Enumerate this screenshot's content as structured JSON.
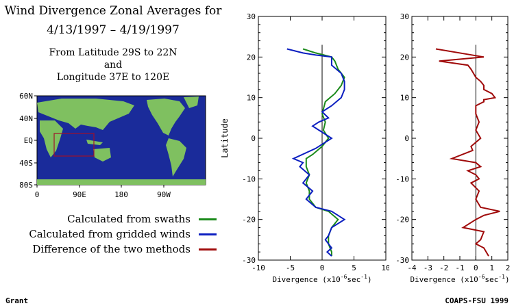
{
  "header": {
    "title_line1": "Wind Divergence Zonal Averages for",
    "title_line2": "4/13/1997 – 4/19/1997",
    "region_line1": "From Latitude 29S to 22N",
    "region_line2": "and",
    "region_line3": "Longitude 37E to 120E"
  },
  "map": {
    "lat_labels": [
      "60N",
      "40N",
      "EQ",
      "40S",
      "80S"
    ],
    "lon_labels": [
      "0",
      "90E",
      "180",
      "90W"
    ],
    "ocean_color": "#1a2b9a",
    "land_color": "#7fc060",
    "box_color": "#a0102a"
  },
  "legend": {
    "items": [
      {
        "label": "Calculated from swaths",
        "color": "#1a8a1a"
      },
      {
        "label": "Calculated from gridded winds",
        "color": "#0b1ec0"
      },
      {
        "label": "Difference of the two methods",
        "color": "#a00a0a"
      }
    ]
  },
  "footer": {
    "left": "Grant",
    "right": "COAPS-FSU 1999"
  },
  "chart_data": [
    {
      "type": "line",
      "orientation": "vertical-profile",
      "ylabel": "Latitude",
      "xlabel": "Divergence (x10-6sec-1)",
      "xlim": [
        -10,
        10
      ],
      "ylim": [
        -30,
        30
      ],
      "xticks": [
        -10,
        -5,
        0,
        5,
        10
      ],
      "yticks": [
        -30,
        -20,
        -10,
        0,
        10,
        20,
        30
      ],
      "series": [
        {
          "name": "Calculated from swaths",
          "color": "#1a8a1a",
          "points": [
            [
              -3,
              22
            ],
            [
              -1,
              21
            ],
            [
              1.5,
              20
            ],
            [
              2,
              19
            ],
            [
              2.5,
              17
            ],
            [
              3.5,
              15
            ],
            [
              3,
              13
            ],
            [
              2,
              11
            ],
            [
              0.5,
              9
            ],
            [
              0,
              6
            ],
            [
              0.5,
              4
            ],
            [
              0.2,
              2
            ],
            [
              1,
              0
            ],
            [
              0,
              -2
            ],
            [
              -1.5,
              -4
            ],
            [
              -2.5,
              -5
            ],
            [
              -2.5,
              -7
            ],
            [
              -2,
              -9
            ],
            [
              -2.5,
              -11
            ],
            [
              -2,
              -13
            ],
            [
              -2,
              -15
            ],
            [
              -1,
              -17
            ],
            [
              1,
              -18
            ],
            [
              2.5,
              -20
            ],
            [
              1.5,
              -22
            ],
            [
              1,
              -24
            ],
            [
              1,
              -26
            ],
            [
              1.5,
              -28
            ],
            [
              1.5,
              -29
            ]
          ]
        },
        {
          "name": "Calculated from gridded winds",
          "color": "#0b1ec0",
          "points": [
            [
              -5.5,
              22
            ],
            [
              -3,
              21
            ],
            [
              -1,
              20.5
            ],
            [
              1.5,
              20
            ],
            [
              1.5,
              18
            ],
            [
              3,
              16
            ],
            [
              3.5,
              14
            ],
            [
              3.5,
              12
            ],
            [
              3,
              10
            ],
            [
              1.5,
              8
            ],
            [
              0,
              6.5
            ],
            [
              1,
              5
            ],
            [
              -0.5,
              4
            ],
            [
              -1.5,
              3
            ],
            [
              -0.5,
              2
            ],
            [
              1.5,
              0
            ],
            [
              -1,
              -2.5
            ],
            [
              -4.5,
              -5
            ],
            [
              -3,
              -6
            ],
            [
              -3.5,
              -7
            ],
            [
              -2,
              -9
            ],
            [
              -3,
              -11
            ],
            [
              -1.5,
              -13
            ],
            [
              -2.5,
              -15
            ],
            [
              -1,
              -17
            ],
            [
              1.5,
              -18
            ],
            [
              3.5,
              -20
            ],
            [
              1.5,
              -22
            ],
            [
              1,
              -24
            ],
            [
              0.5,
              -25
            ],
            [
              1.5,
              -27
            ],
            [
              0.8,
              -28
            ],
            [
              1.5,
              -29
            ]
          ]
        }
      ]
    },
    {
      "type": "line",
      "orientation": "vertical-profile",
      "xlabel": "Divergence (x10-6sec-1)",
      "xlim": [
        -4,
        2
      ],
      "ylim": [
        -30,
        30
      ],
      "xticks": [
        -4,
        -3,
        -2,
        -1,
        0,
        1,
        2
      ],
      "yticks": [
        -30,
        -20,
        -10,
        0,
        10,
        20,
        30
      ],
      "series": [
        {
          "color": "#a00a0a",
          "points": [
            [
              -2.5,
              22
            ],
            [
              0.5,
              20
            ],
            [
              -2.3,
              19
            ],
            [
              -0.5,
              18
            ],
            [
              -0.3,
              17
            ],
            [
              0,
              15
            ],
            [
              0.3,
              14
            ],
            [
              0.5,
              13
            ],
            [
              0.5,
              12
            ],
            [
              1,
              11
            ],
            [
              1.2,
              10
            ],
            [
              0.5,
              9.5
            ],
            [
              0.5,
              9
            ],
            [
              0,
              8
            ],
            [
              0,
              6
            ],
            [
              0.2,
              4
            ],
            [
              0,
              2
            ],
            [
              0.3,
              0
            ],
            [
              -0.3,
              -2
            ],
            [
              -0.2,
              -3
            ],
            [
              -1.5,
              -5
            ],
            [
              0,
              -6
            ],
            [
              0.3,
              -7
            ],
            [
              -0.5,
              -8
            ],
            [
              0,
              -9
            ],
            [
              0.2,
              -10
            ],
            [
              -0.3,
              -11
            ],
            [
              0.2,
              -13
            ],
            [
              0,
              -15
            ],
            [
              0.3,
              -17
            ],
            [
              1.5,
              -18
            ],
            [
              0.5,
              -19
            ],
            [
              0,
              -20
            ],
            [
              -0.8,
              -22
            ],
            [
              0.5,
              -23
            ],
            [
              0.3,
              -25
            ],
            [
              0,
              -26
            ],
            [
              0.5,
              -27
            ],
            [
              0.8,
              -29
            ]
          ]
        }
      ]
    }
  ]
}
